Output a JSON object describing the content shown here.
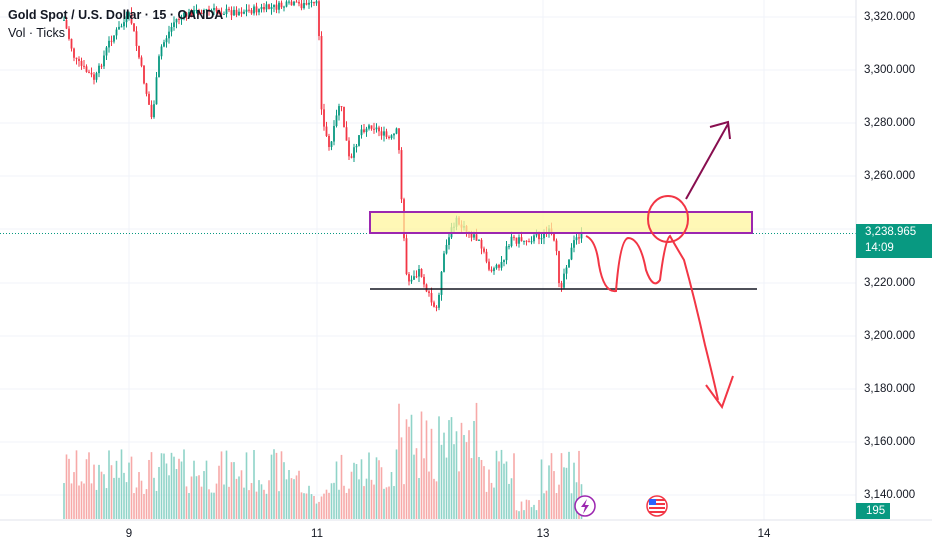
{
  "legend": {
    "symbol": "Gold Spot / U.S. Dollar · 15 · OANDA",
    "indicator": "Vol · Ticks"
  },
  "price_axis": {
    "ticks": [
      "3,320.000",
      "3,300.000",
      "3,280.000",
      "3,260.000",
      "3,220.000",
      "3,200.000",
      "3,180.000",
      "3,160.000",
      "3,140.000"
    ]
  },
  "time_axis": {
    "ticks": [
      "9",
      "11",
      "13",
      "14"
    ]
  },
  "last_price": {
    "value": "3,238.965",
    "countdown": "14:09"
  },
  "volume_badge": "195",
  "icons": [
    "lightning-icon",
    "us-flag-icon"
  ],
  "colors": {
    "up": "#089981",
    "down": "#f23645",
    "drawing_red": "#f23645",
    "zone_border": "#9c27b0",
    "zone_fill": "#fff59d",
    "arrow_purple": "#880e4f"
  },
  "chart_data": {
    "type": "candlestick",
    "instrument": "XAUUSD",
    "ylim": [
      3128,
      3330
    ],
    "resistance_zone": [
      3238.5,
      3246.5
    ],
    "support_line": 3217.5
  }
}
